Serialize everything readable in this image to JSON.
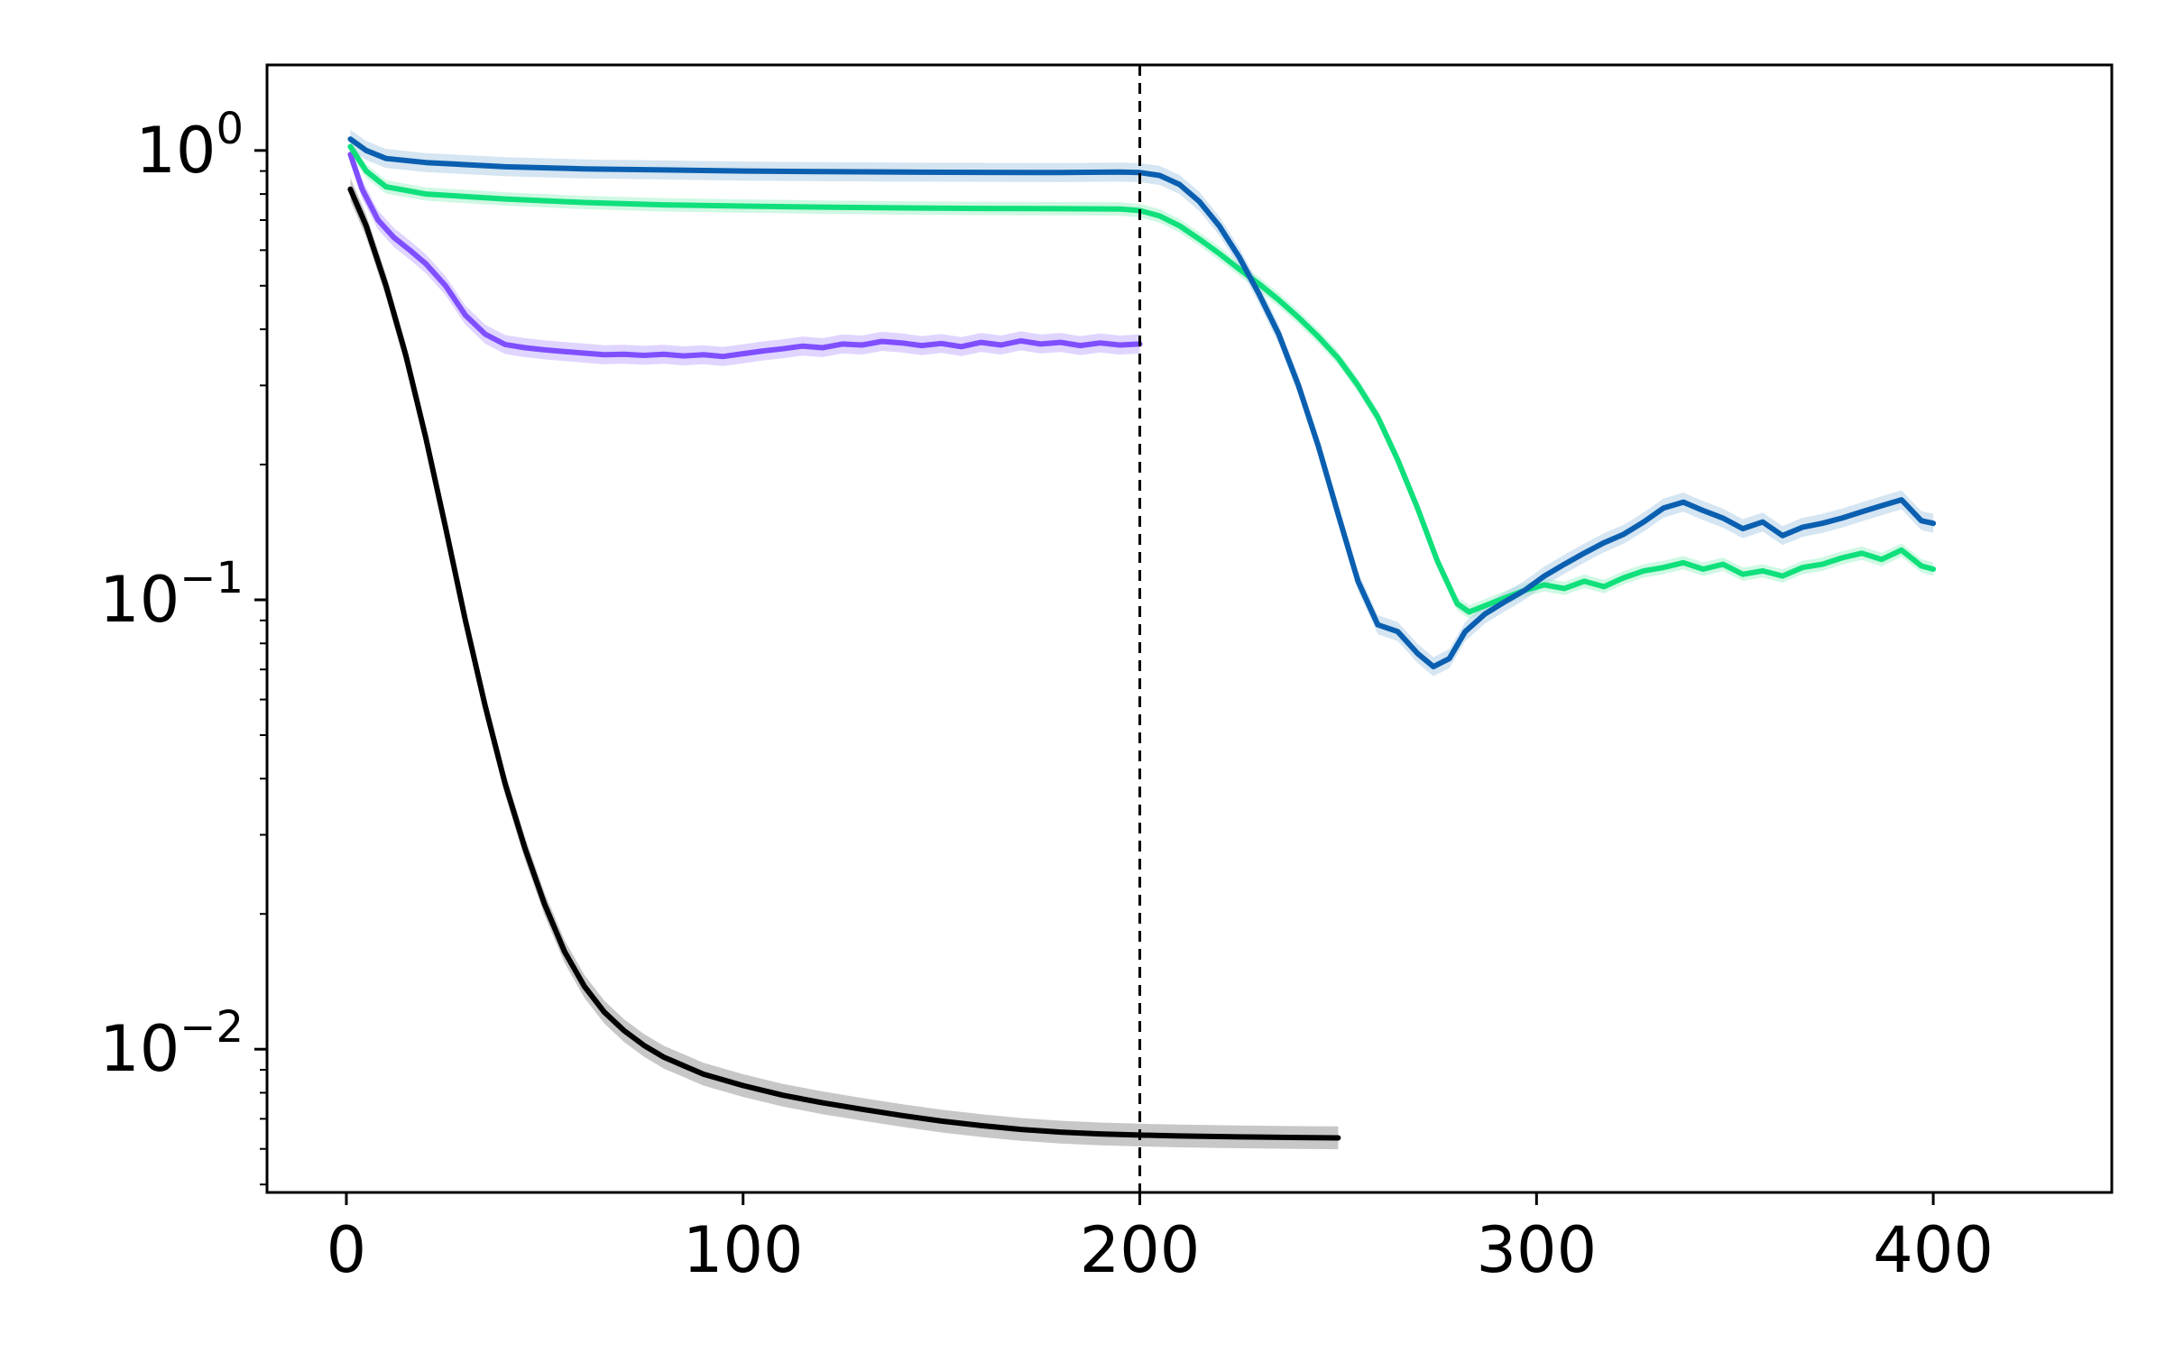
{
  "chart_data": {
    "type": "line",
    "title": "",
    "xlabel": "",
    "ylabel": "",
    "x_scale": "linear",
    "y_scale": "log",
    "xlim": [
      -20,
      445
    ],
    "ylim": [
      0.0048,
      1.55
    ],
    "grid": false,
    "legend": "none",
    "x_ticks": [
      {
        "value": 0,
        "label": "0"
      },
      {
        "value": 100,
        "label": "100"
      },
      {
        "value": 200,
        "label": "200"
      },
      {
        "value": 300,
        "label": "300"
      },
      {
        "value": 400,
        "label": "400"
      }
    ],
    "y_ticks": [
      {
        "value": 1,
        "base": "10",
        "exp": "0"
      },
      {
        "value": 0.1,
        "base": "10",
        "exp": "−1"
      },
      {
        "value": 0.01,
        "base": "10",
        "exp": "−2"
      }
    ],
    "vertical_lines": [
      {
        "x": 200,
        "style": "dashed",
        "color": "#000000"
      }
    ],
    "series": [
      {
        "color": "#000000",
        "band_color": "#999999",
        "band": 0.06,
        "points": [
          [
            1,
            0.82
          ],
          [
            5,
            0.68
          ],
          [
            10,
            0.5
          ],
          [
            15,
            0.35
          ],
          [
            20,
            0.23
          ],
          [
            25,
            0.145
          ],
          [
            30,
            0.09
          ],
          [
            35,
            0.058
          ],
          [
            40,
            0.039
          ],
          [
            45,
            0.028
          ],
          [
            50,
            0.021
          ],
          [
            55,
            0.0165
          ],
          [
            60,
            0.0138
          ],
          [
            65,
            0.0121
          ],
          [
            70,
            0.011
          ],
          [
            75,
            0.0102
          ],
          [
            80,
            0.0096
          ],
          [
            90,
            0.0088
          ],
          [
            100,
            0.0083
          ],
          [
            110,
            0.0079
          ],
          [
            120,
            0.0076
          ],
          [
            130,
            0.00735
          ],
          [
            140,
            0.00712
          ],
          [
            150,
            0.00692
          ],
          [
            160,
            0.00676
          ],
          [
            170,
            0.00663
          ],
          [
            180,
            0.00654
          ],
          [
            190,
            0.00648
          ],
          [
            200,
            0.00644
          ],
          [
            210,
            0.00641
          ],
          [
            225,
            0.00638
          ],
          [
            240,
            0.00636
          ],
          [
            250,
            0.00635
          ]
        ]
      },
      {
        "color": "#7f4fff",
        "band_color": "#c6b3ff",
        "band": 0.05,
        "points": [
          [
            1,
            0.98
          ],
          [
            4,
            0.82
          ],
          [
            8,
            0.7
          ],
          [
            12,
            0.64
          ],
          [
            16,
            0.6
          ],
          [
            20,
            0.56
          ],
          [
            25,
            0.5
          ],
          [
            30,
            0.43
          ],
          [
            35,
            0.39
          ],
          [
            40,
            0.37
          ],
          [
            45,
            0.364
          ],
          [
            50,
            0.36
          ],
          [
            55,
            0.357
          ],
          [
            60,
            0.354
          ],
          [
            65,
            0.351
          ],
          [
            70,
            0.352
          ],
          [
            75,
            0.35
          ],
          [
            80,
            0.352
          ],
          [
            85,
            0.349
          ],
          [
            90,
            0.351
          ],
          [
            95,
            0.348
          ],
          [
            100,
            0.353
          ],
          [
            105,
            0.358
          ],
          [
            110,
            0.362
          ],
          [
            115,
            0.367
          ],
          [
            120,
            0.364
          ],
          [
            125,
            0.371
          ],
          [
            130,
            0.369
          ],
          [
            135,
            0.376
          ],
          [
            140,
            0.373
          ],
          [
            145,
            0.368
          ],
          [
            150,
            0.372
          ],
          [
            155,
            0.366
          ],
          [
            160,
            0.374
          ],
          [
            165,
            0.369
          ],
          [
            170,
            0.377
          ],
          [
            175,
            0.371
          ],
          [
            180,
            0.374
          ],
          [
            185,
            0.368
          ],
          [
            190,
            0.373
          ],
          [
            195,
            0.369
          ],
          [
            200,
            0.371
          ]
        ]
      },
      {
        "color": "#0fe07b",
        "band_color": "#a8f2cc",
        "band": 0.035,
        "points": [
          [
            1,
            1.02
          ],
          [
            5,
            0.9
          ],
          [
            10,
            0.83
          ],
          [
            20,
            0.8
          ],
          [
            40,
            0.78
          ],
          [
            60,
            0.766
          ],
          [
            80,
            0.757
          ],
          [
            100,
            0.752
          ],
          [
            120,
            0.748
          ],
          [
            140,
            0.745
          ],
          [
            160,
            0.743
          ],
          [
            180,
            0.742
          ],
          [
            195,
            0.741
          ],
          [
            200,
            0.735
          ],
          [
            205,
            0.715
          ],
          [
            210,
            0.68
          ],
          [
            215,
            0.635
          ],
          [
            220,
            0.59
          ],
          [
            225,
            0.545
          ],
          [
            230,
            0.505
          ],
          [
            235,
            0.465
          ],
          [
            240,
            0.425
          ],
          [
            245,
            0.385
          ],
          [
            250,
            0.345
          ],
          [
            255,
            0.3
          ],
          [
            260,
            0.255
          ],
          [
            265,
            0.205
          ],
          [
            270,
            0.16
          ],
          [
            275,
            0.122
          ],
          [
            280,
            0.098
          ],
          [
            283,
            0.094
          ],
          [
            287,
            0.097
          ],
          [
            292,
            0.101
          ],
          [
            297,
            0.105
          ],
          [
            302,
            0.108
          ],
          [
            307,
            0.106
          ],
          [
            312,
            0.11
          ],
          [
            317,
            0.107
          ],
          [
            322,
            0.112
          ],
          [
            327,
            0.116
          ],
          [
            332,
            0.118
          ],
          [
            337,
            0.121
          ],
          [
            342,
            0.117
          ],
          [
            347,
            0.12
          ],
          [
            352,
            0.114
          ],
          [
            357,
            0.116
          ],
          [
            362,
            0.113
          ],
          [
            367,
            0.118
          ],
          [
            372,
            0.12
          ],
          [
            377,
            0.124
          ],
          [
            382,
            0.127
          ],
          [
            387,
            0.123
          ],
          [
            392,
            0.129
          ],
          [
            397,
            0.119
          ],
          [
            400,
            0.117
          ]
        ]
      },
      {
        "color": "#0a5fb0",
        "band_color": "#b3cfe8",
        "band": 0.05,
        "points": [
          [
            1,
            1.06
          ],
          [
            5,
            1.0
          ],
          [
            10,
            0.96
          ],
          [
            20,
            0.94
          ],
          [
            40,
            0.92
          ],
          [
            60,
            0.91
          ],
          [
            80,
            0.905
          ],
          [
            100,
            0.9
          ],
          [
            120,
            0.897
          ],
          [
            140,
            0.895
          ],
          [
            160,
            0.894
          ],
          [
            180,
            0.893
          ],
          [
            195,
            0.895
          ],
          [
            200,
            0.893
          ],
          [
            205,
            0.88
          ],
          [
            210,
            0.84
          ],
          [
            215,
            0.77
          ],
          [
            220,
            0.68
          ],
          [
            225,
            0.58
          ],
          [
            230,
            0.48
          ],
          [
            235,
            0.39
          ],
          [
            240,
            0.3
          ],
          [
            245,
            0.22
          ],
          [
            250,
            0.155
          ],
          [
            255,
            0.11
          ],
          [
            260,
            0.088
          ],
          [
            265,
            0.085
          ],
          [
            270,
            0.076
          ],
          [
            274,
            0.071
          ],
          [
            278,
            0.074
          ],
          [
            282,
            0.085
          ],
          [
            287,
            0.093
          ],
          [
            292,
            0.099
          ],
          [
            297,
            0.105
          ],
          [
            302,
            0.113
          ],
          [
            307,
            0.12
          ],
          [
            312,
            0.127
          ],
          [
            317,
            0.134
          ],
          [
            322,
            0.14
          ],
          [
            327,
            0.149
          ],
          [
            332,
            0.16
          ],
          [
            337,
            0.165
          ],
          [
            342,
            0.158
          ],
          [
            347,
            0.152
          ],
          [
            352,
            0.144
          ],
          [
            357,
            0.149
          ],
          [
            362,
            0.139
          ],
          [
            367,
            0.145
          ],
          [
            372,
            0.148
          ],
          [
            377,
            0.152
          ],
          [
            382,
            0.157
          ],
          [
            387,
            0.162
          ],
          [
            392,
            0.167
          ],
          [
            397,
            0.15
          ],
          [
            400,
            0.148
          ]
        ]
      }
    ]
  }
}
